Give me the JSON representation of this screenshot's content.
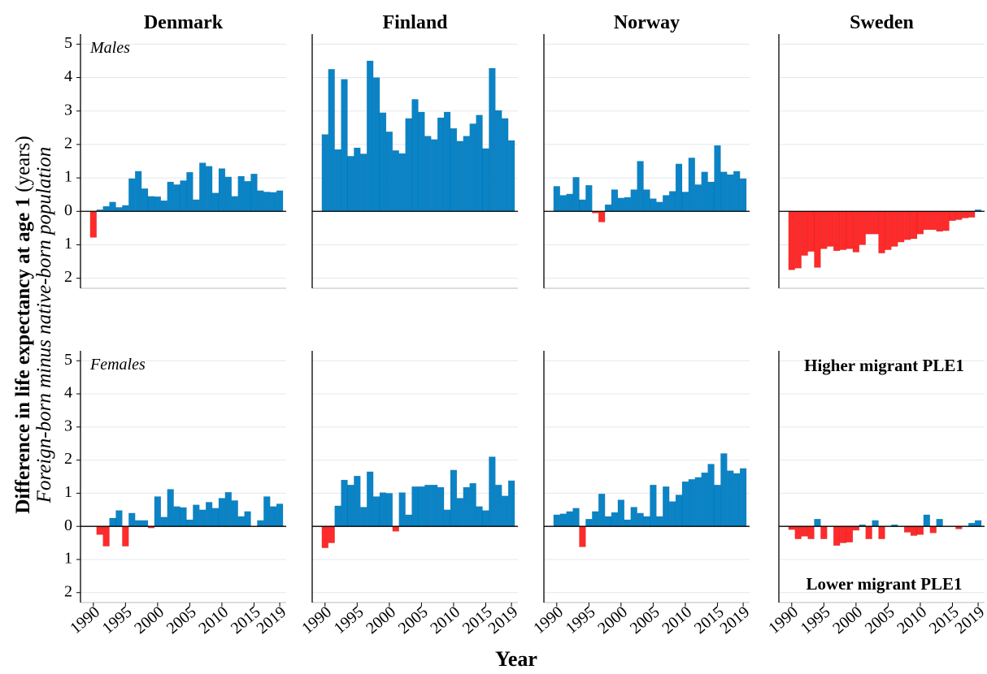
{
  "ylabel": "Difference in life expectancy at age 1",
  "ylabel_unit": "(years)",
  "ylabel_sub": "Foreign-born minus native-born population",
  "xlabel": "Year",
  "ylim": [
    -2.3,
    5.3
  ],
  "yticks": [
    {
      "value": -2,
      "label": "2"
    },
    {
      "value": -1,
      "label": "1"
    },
    0,
    1,
    2,
    3,
    4,
    5
  ],
  "xlim": [
    1988,
    2020
  ],
  "xticks": [
    1990,
    1995,
    2000,
    2005,
    2010,
    2015,
    2019
  ],
  "x": [
    1990,
    1991,
    1992,
    1993,
    1994,
    1995,
    1996,
    1997,
    1998,
    1999,
    2000,
    2001,
    2002,
    2003,
    2004,
    2005,
    2006,
    2007,
    2008,
    2009,
    2010,
    2011,
    2012,
    2013,
    2014,
    2015,
    2016,
    2017,
    2018,
    2019
  ],
  "positive_color": "#0a84c6",
  "negative_color": "#ff2a2a",
  "chart_data": [
    {
      "type": "bar",
      "title": "Denmark",
      "label": "Males",
      "values": [
        -0.78,
        0.05,
        0.15,
        0.28,
        0.12,
        0.18,
        0.98,
        1.2,
        0.68,
        0.45,
        0.44,
        0.32,
        0.88,
        0.8,
        0.92,
        1.17,
        0.35,
        1.45,
        1.35,
        0.55,
        1.28,
        1.03,
        0.45,
        1.05,
        0.9,
        1.12,
        0.62,
        0.58,
        0.57,
        0.62
      ]
    },
    {
      "type": "bar",
      "title": "Finland",
      "values": [
        2.3,
        4.25,
        1.85,
        3.95,
        1.65,
        1.9,
        1.72,
        4.5,
        4.0,
        2.95,
        2.38,
        1.82,
        1.73,
        2.78,
        3.35,
        2.97,
        2.25,
        2.15,
        2.8,
        2.97,
        2.48,
        2.1,
        2.25,
        2.62,
        2.88,
        1.88,
        4.28,
        3.02,
        2.78,
        2.12
      ]
    },
    {
      "type": "bar",
      "title": "Norway",
      "values": [
        0.75,
        0.48,
        0.52,
        1.02,
        0.35,
        0.78,
        -0.05,
        -0.32,
        0.2,
        0.65,
        0.4,
        0.42,
        0.65,
        1.5,
        0.65,
        0.38,
        0.28,
        0.48,
        0.6,
        1.42,
        0.58,
        1.6,
        0.8,
        1.18,
        0.88,
        1.97,
        1.18,
        1.1,
        1.2,
        0.98
      ]
    },
    {
      "type": "bar",
      "title": "Sweden",
      "values": [
        -1.75,
        -1.7,
        -1.32,
        -1.2,
        -1.68,
        -1.12,
        -1.05,
        -1.18,
        -1.15,
        -1.12,
        -1.22,
        -1.0,
        -0.68,
        -0.68,
        -1.25,
        -1.15,
        -1.05,
        -0.92,
        -0.85,
        -0.82,
        -0.68,
        -0.55,
        -0.55,
        -0.6,
        -0.58,
        -0.28,
        -0.25,
        -0.2,
        -0.18,
        0.05
      ]
    },
    {
      "type": "bar",
      "label": "Females",
      "values": [
        0,
        -0.25,
        -0.6,
        0.25,
        0.48,
        -0.6,
        0.4,
        0.18,
        0.18,
        -0.05,
        0.9,
        0.28,
        1.12,
        0.6,
        0.57,
        0.2,
        0.65,
        0.5,
        0.73,
        0.55,
        0.85,
        1.03,
        0.78,
        0.3,
        0.45,
        0,
        0.18,
        0.9,
        0.6,
        0.68
      ]
    },
    {
      "type": "bar",
      "values": [
        -0.65,
        -0.5,
        0.62,
        1.4,
        1.25,
        1.52,
        0.58,
        1.65,
        0.9,
        1.02,
        1.0,
        -0.15,
        1.02,
        0.35,
        1.2,
        1.2,
        1.25,
        1.25,
        1.18,
        0.5,
        1.7,
        0.85,
        1.18,
        1.3,
        0.6,
        0.48,
        2.1,
        1.25,
        0.92,
        1.38
      ]
    },
    {
      "type": "bar",
      "values": [
        0.35,
        0.38,
        0.45,
        0.55,
        -0.62,
        0.22,
        0.45,
        0.98,
        0.3,
        0.42,
        0.8,
        0.2,
        0.58,
        0.4,
        0.3,
        1.25,
        0.3,
        1.2,
        0.75,
        0.95,
        1.35,
        1.42,
        1.48,
        1.62,
        1.88,
        1.25,
        2.2,
        1.68,
        1.6,
        1.75
      ]
    },
    {
      "type": "bar",
      "annotations": [
        "Higher migrant PLE1",
        "Lower migrant PLE1"
      ],
      "values": [
        -0.1,
        -0.38,
        -0.3,
        -0.38,
        0.22,
        -0.38,
        0,
        -0.58,
        -0.5,
        -0.48,
        -0.12,
        0.05,
        -0.38,
        0.18,
        -0.38,
        0,
        0.05,
        0,
        -0.18,
        -0.28,
        -0.25,
        0.35,
        -0.2,
        0.22,
        0,
        0,
        -0.08,
        0,
        0.1,
        0.18
      ]
    }
  ]
}
